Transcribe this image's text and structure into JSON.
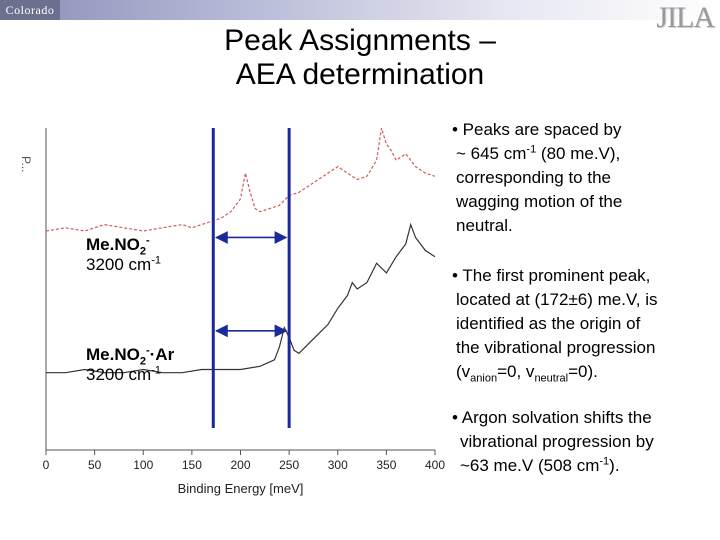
{
  "header": {
    "logo_left": "Colorado",
    "logo_right": "JILA"
  },
  "title": {
    "line1": "Peak Assignments –",
    "line2": "AEA determination"
  },
  "chart_data": {
    "type": "line",
    "xlabel": "Binding Energy [meV]",
    "ylabel": "",
    "xlim": [
      0,
      400
    ],
    "xticks": [
      "0",
      "50",
      "100",
      "150",
      "200",
      "250",
      "300",
      "350",
      "400"
    ],
    "yaxis_fragment": "P...",
    "series": [
      {
        "name": "MeNO2- 3200 cm-1",
        "color": "#d65a5a",
        "style": "dashed",
        "x": [
          0,
          20,
          40,
          60,
          80,
          100,
          120,
          140,
          150,
          160,
          170,
          180,
          190,
          200,
          205,
          210,
          215,
          220,
          230,
          240,
          250,
          260,
          270,
          280,
          290,
          300,
          310,
          320,
          330,
          340,
          345,
          350,
          355,
          360,
          370,
          380,
          390,
          400
        ],
        "y": [
          0.68,
          0.69,
          0.68,
          0.7,
          0.69,
          0.68,
          0.69,
          0.7,
          0.69,
          0.7,
          0.71,
          0.72,
          0.74,
          0.78,
          0.86,
          0.8,
          0.75,
          0.74,
          0.75,
          0.76,
          0.79,
          0.8,
          0.82,
          0.84,
          0.86,
          0.88,
          0.86,
          0.84,
          0.85,
          0.9,
          1.0,
          0.95,
          0.93,
          0.9,
          0.92,
          0.88,
          0.86,
          0.85
        ]
      },
      {
        "name": "MeNO2-·Ar 3200 cm-1",
        "color": "#333333",
        "style": "solid",
        "x": [
          0,
          20,
          40,
          60,
          80,
          100,
          120,
          140,
          160,
          180,
          200,
          220,
          235,
          240,
          245,
          250,
          255,
          260,
          270,
          280,
          290,
          300,
          310,
          315,
          320,
          330,
          340,
          350,
          360,
          370,
          375,
          380,
          390,
          400
        ],
        "y": [
          0.24,
          0.24,
          0.25,
          0.24,
          0.24,
          0.25,
          0.24,
          0.24,
          0.25,
          0.25,
          0.25,
          0.26,
          0.28,
          0.32,
          0.38,
          0.35,
          0.31,
          0.3,
          0.33,
          0.36,
          0.39,
          0.44,
          0.48,
          0.52,
          0.5,
          0.52,
          0.58,
          0.55,
          0.6,
          0.64,
          0.7,
          0.66,
          0.62,
          0.6
        ]
      }
    ],
    "vertical_lines": [
      172,
      250
    ],
    "arrows": [
      {
        "from": 172,
        "to": 250,
        "level": 0.66
      },
      {
        "from": 172,
        "to": 250,
        "level": 0.37
      }
    ],
    "annotations": [
      {
        "species": "Me.NO",
        "sub": "2",
        "sup": "-",
        "suffix": "",
        "energy": "3200 cm",
        "energy_sup": "-1"
      },
      {
        "species": "Me.NO",
        "sub": "2",
        "sup": "-",
        "suffix": "·Ar",
        "energy": "3200 cm",
        "energy_sup": "-1"
      }
    ]
  },
  "bullets": {
    "b1": {
      "l1": "• Peaks are spaced by",
      "l2a": "~ 645 cm",
      "l2sup": "-1",
      "l2b": " (80 me.V),",
      "l3": "corresponding to the",
      "l4": "wagging motion of the",
      "l5": "neutral."
    },
    "b2": {
      "l1": "• The first prominent peak,",
      "l2": "located at (172±6) me.V, is",
      "l3": "identified as the origin of",
      "l4": "the vibrational progression",
      "l5a": "(v",
      "l5sub1": "anion",
      "l5b": "=0, v",
      "l5sub2": "neutral",
      "l5c": "=0)."
    },
    "b3": {
      "l1": "• Argon solvation shifts the",
      "l2": "vibrational progression by",
      "l3a": "~63 me.V (508 cm",
      "l3sup": "-1",
      "l3b": ")."
    }
  }
}
